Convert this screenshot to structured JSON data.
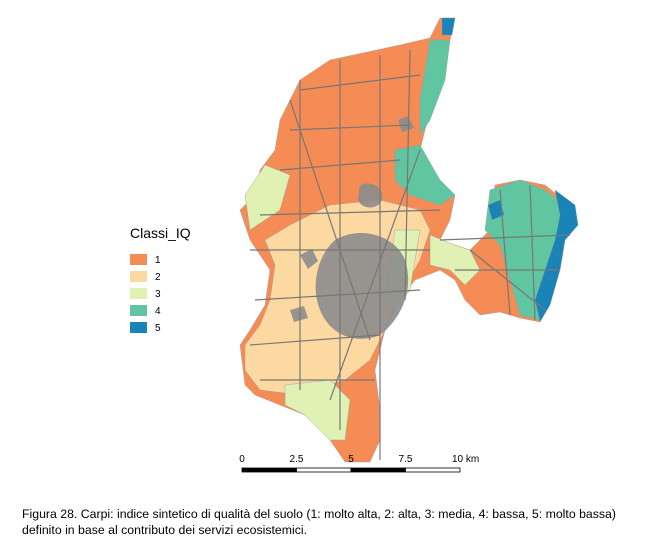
{
  "legend": {
    "title": "Classi_IQ",
    "classes": [
      {
        "label": "1",
        "color": "#f58c55"
      },
      {
        "label": "2",
        "color": "#fdd9a2"
      },
      {
        "label": "3",
        "color": "#dff1b3"
      },
      {
        "label": "4",
        "color": "#5fc6a1"
      },
      {
        "label": "5",
        "color": "#1a84b8"
      }
    ]
  },
  "scale_bar": {
    "labels": [
      "0",
      "2.5",
      "5",
      "7.5",
      "10 km"
    ]
  },
  "caption": "Figura 28. Carpi: indice sintetico di qualità del suolo (1: molto alta, 2: alta, 3: media, 4: bassa, 5: molto bassa)  definito in base al contributo dei servizi ecosistemici."
}
